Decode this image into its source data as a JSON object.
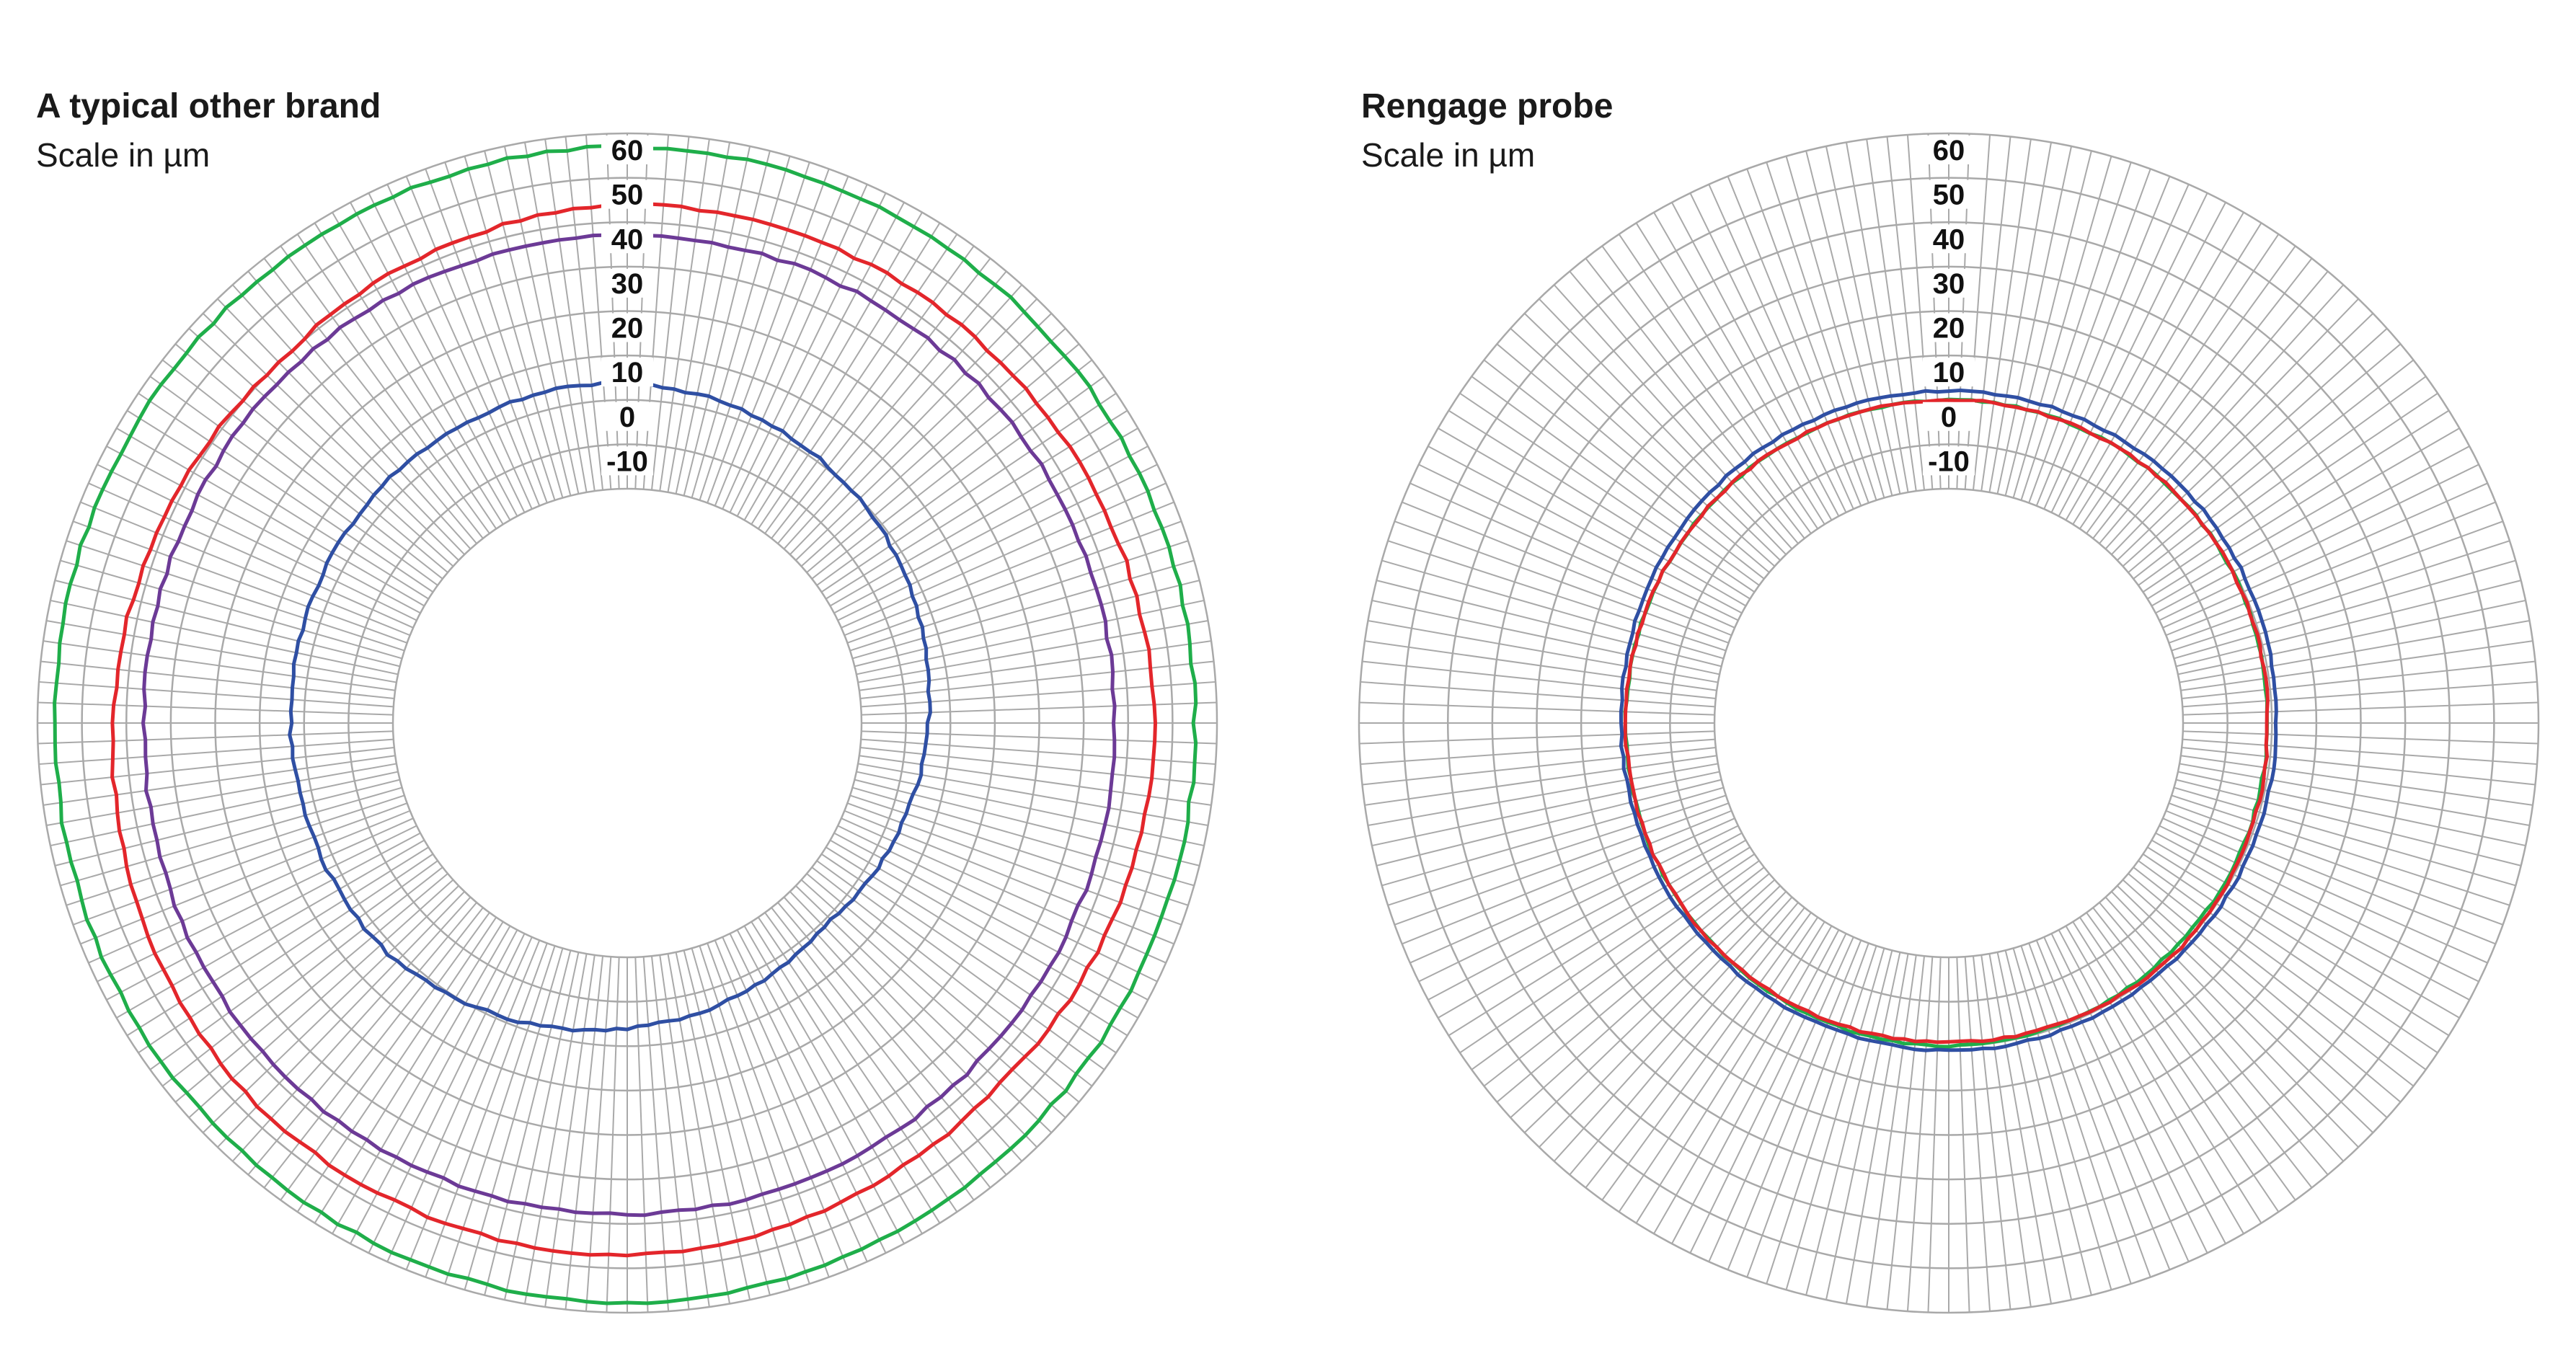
{
  "charts": {
    "left": {
      "title": "A typical other brand",
      "subtitle": "Scale in µm"
    },
    "right": {
      "title": "Rengage probe",
      "subtitle": "Scale in µm"
    }
  },
  "colors": {
    "grid": "#a9a9a9",
    "green": "#1fae4a",
    "red": "#e3262b",
    "purple": "#6c3a96",
    "blue": "#2f4fa3"
  },
  "chart_data": [
    {
      "type": "radar",
      "title": "A typical other brand",
      "subtitle": "Scale in µm",
      "radial_ticks": [
        60,
        50,
        40,
        30,
        20,
        10,
        0,
        -10
      ],
      "rlim": [
        -20,
        60
      ],
      "grid": true,
      "spokes": 180,
      "series": [
        {
          "color": "#1fae4a",
          "angles_deg": [
            0,
            45,
            90,
            135,
            180,
            225,
            270,
            315
          ],
          "values": [
            57,
            56,
            55,
            56,
            58,
            57,
            56,
            57
          ]
        },
        {
          "color": "#e3262b",
          "angles_deg": [
            0,
            45,
            90,
            135,
            180,
            225,
            270,
            315
          ],
          "values": [
            44,
            44,
            46,
            44,
            47,
            47,
            43,
            40
          ]
        },
        {
          "color": "#6c3a96",
          "angles_deg": [
            0,
            45,
            90,
            135,
            180,
            225,
            270,
            315
          ],
          "values": [
            37,
            37,
            37,
            37,
            38,
            38,
            36,
            37
          ]
        },
        {
          "color": "#2f4fa3",
          "angles_deg": [
            0,
            45,
            90,
            135,
            180,
            225,
            270,
            315
          ],
          "values": [
            4,
            0,
            -5,
            -9,
            -4,
            2,
            3,
            4
          ]
        }
      ]
    },
    {
      "type": "radar",
      "title": "Rengage probe",
      "subtitle": "Scale in µm",
      "radial_ticks": [
        60,
        50,
        40,
        30,
        20,
        10,
        0,
        -10
      ],
      "rlim": [
        -20,
        60
      ],
      "grid": true,
      "spokes": 180,
      "series": [
        {
          "color": "#1fae4a",
          "angles_deg": [
            0,
            45,
            90,
            135,
            180,
            225,
            270,
            315
          ],
          "values": [
            0,
            0,
            -1,
            -1,
            0,
            0,
            0,
            0
          ]
        },
        {
          "color": "#e3262b",
          "angles_deg": [
            0,
            45,
            90,
            135,
            180,
            225,
            270,
            315
          ],
          "values": [
            0,
            0,
            -1,
            0,
            -1,
            0,
            0,
            0
          ]
        },
        {
          "color": "#2f4fa3",
          "angles_deg": [
            0,
            45,
            90,
            135,
            180,
            225,
            270,
            315
          ],
          "values": [
            2,
            2,
            1,
            1,
            1,
            1,
            1,
            2
          ]
        }
      ]
    }
  ]
}
